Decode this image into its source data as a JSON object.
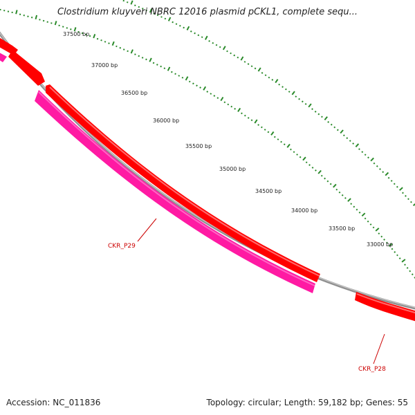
{
  "title": "Clostridium kluyveri NBRC 12016 plasmid pCKL1, complete sequ...",
  "accession": "Accession: NC_011836",
  "summary": "Topology: circular; Length: 59,182 bp; Genes: 55",
  "scale_labels": [
    "37500 bp",
    "37000 bp",
    "36500 bp",
    "36000 bp",
    "35500 bp",
    "35000 bp",
    "34500 bp",
    "34000 bp",
    "33500 bp",
    "33000 bp"
  ],
  "gene_labels": [
    "CKR_P29",
    "CKR_P28"
  ],
  "colors": {
    "backbone": "#8c8c8c",
    "gene_forward": "#ff0000",
    "gene_reverse": "#ff1aa3",
    "ticks": "#2a8a2a",
    "label": "#cc0000"
  }
}
